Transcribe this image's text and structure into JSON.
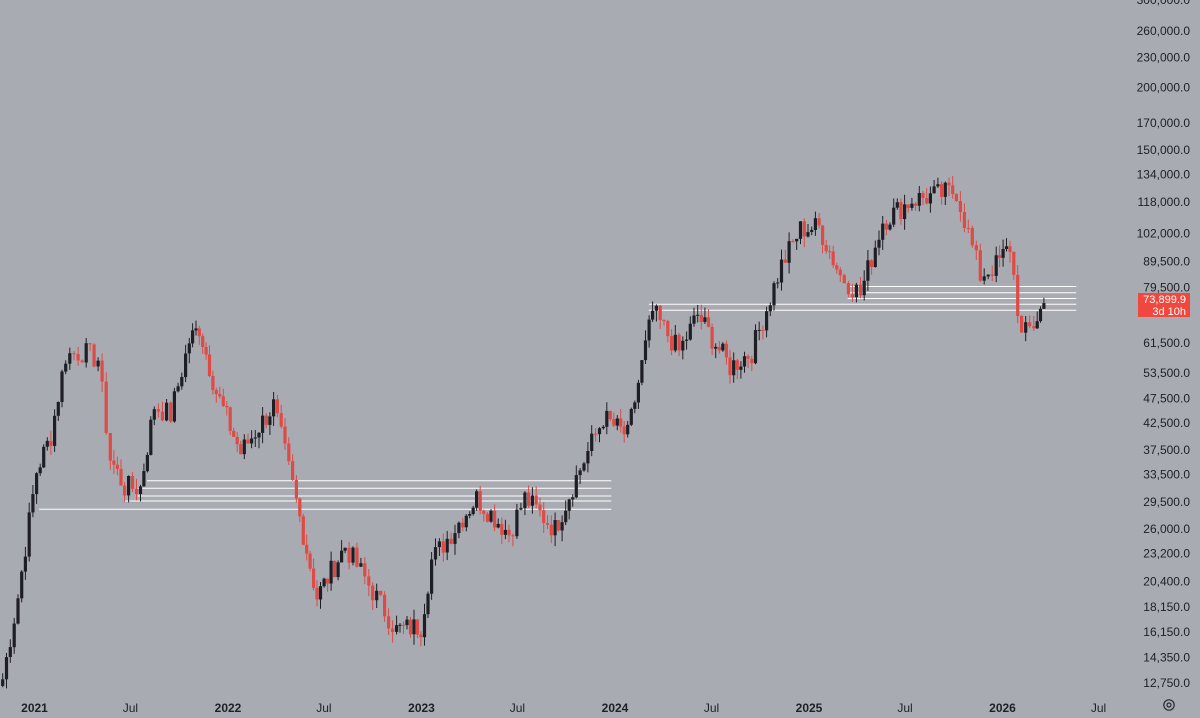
{
  "chart_data": {
    "type": "candlestick",
    "y_scale": "log",
    "ylim": [
      11800,
      300000
    ],
    "xlim": [
      "2020-10-28",
      "2026-08-20"
    ],
    "y_ticks": [
      {
        "value": 300000,
        "label": "300,000.0"
      },
      {
        "value": 260000,
        "label": "260,000.0"
      },
      {
        "value": 230000,
        "label": "230,000.0"
      },
      {
        "value": 200000,
        "label": "200,000.0"
      },
      {
        "value": 170000,
        "label": "170,000.0"
      },
      {
        "value": 150000,
        "label": "150,000.0"
      },
      {
        "value": 134000,
        "label": "134,000.0"
      },
      {
        "value": 118000,
        "label": "118,000.0"
      },
      {
        "value": 102000,
        "label": "102,000.0"
      },
      {
        "value": 89500,
        "label": "89,500.0"
      },
      {
        "value": 79500,
        "label": "79,500.0"
      },
      {
        "value": 61500,
        "label": "61,500.0"
      },
      {
        "value": 53500,
        "label": "53,500.0"
      },
      {
        "value": 47500,
        "label": "47,500.0"
      },
      {
        "value": 42500,
        "label": "42,500.0"
      },
      {
        "value": 37500,
        "label": "37,500.0"
      },
      {
        "value": 33500,
        "label": "33,500.0"
      },
      {
        "value": 29500,
        "label": "29,500.0"
      },
      {
        "value": 26000,
        "label": "26,000.0"
      },
      {
        "value": 23200,
        "label": "23,200.0"
      },
      {
        "value": 20400,
        "label": "20,400.0"
      },
      {
        "value": 18150,
        "label": "18,150.0"
      },
      {
        "value": 16150,
        "label": "16,150.0"
      },
      {
        "value": 14350,
        "label": "14,350.0"
      },
      {
        "value": 12750,
        "label": "12,750.0"
      }
    ],
    "x_ticks": [
      {
        "date": "2021-01-01",
        "label": "2021",
        "bold": true
      },
      {
        "date": "2021-07-01",
        "label": "Jul",
        "bold": false
      },
      {
        "date": "2022-01-01",
        "label": "2022",
        "bold": true
      },
      {
        "date": "2022-07-01",
        "label": "Jul",
        "bold": false
      },
      {
        "date": "2023-01-01",
        "label": "2023",
        "bold": true
      },
      {
        "date": "2023-07-01",
        "label": "Jul",
        "bold": false
      },
      {
        "date": "2024-01-01",
        "label": "2024",
        "bold": true
      },
      {
        "date": "2024-07-01",
        "label": "Jul",
        "bold": false
      },
      {
        "date": "2025-01-01",
        "label": "2025",
        "bold": true
      },
      {
        "date": "2025-07-01",
        "label": "Jul",
        "bold": false
      },
      {
        "date": "2026-01-01",
        "label": "2026",
        "bold": true
      },
      {
        "date": "2026-07-01",
        "label": "Jul",
        "bold": false
      }
    ],
    "series": [
      {
        "candle_interval": "weekly",
        "points": [
          {
            "date": "2020-11-02",
            "close": 13000
          },
          {
            "date": "2020-12-01",
            "close": 19000
          },
          {
            "date": "2021-01-05",
            "close": 34000
          },
          {
            "date": "2021-02-01",
            "close": 40000
          },
          {
            "date": "2021-03-01",
            "close": 58000
          },
          {
            "date": "2021-04-01",
            "close": 59000
          },
          {
            "date": "2021-05-01",
            "close": 57000
          },
          {
            "date": "2021-05-24",
            "close": 36000
          },
          {
            "date": "2021-06-20",
            "close": 31500
          },
          {
            "date": "2021-07-20",
            "close": 31500
          },
          {
            "date": "2021-08-15",
            "close": 46000
          },
          {
            "date": "2021-09-15",
            "close": 44000
          },
          {
            "date": "2021-10-20",
            "close": 62000
          },
          {
            "date": "2021-11-08",
            "close": 66000
          },
          {
            "date": "2021-12-10",
            "close": 49000
          },
          {
            "date": "2022-01-25",
            "close": 37000
          },
          {
            "date": "2022-03-28",
            "close": 46000
          },
          {
            "date": "2022-05-10",
            "close": 29500
          },
          {
            "date": "2022-06-18",
            "close": 19000
          },
          {
            "date": "2022-08-10",
            "close": 24000
          },
          {
            "date": "2022-10-01",
            "close": 19500
          },
          {
            "date": "2022-11-15",
            "close": 16300
          },
          {
            "date": "2022-12-31",
            "close": 16600
          },
          {
            "date": "2023-01-20",
            "close": 22500
          },
          {
            "date": "2023-03-20",
            "close": 27500
          },
          {
            "date": "2023-04-15",
            "close": 30000
          },
          {
            "date": "2023-06-15",
            "close": 25500
          },
          {
            "date": "2023-07-15",
            "close": 30000
          },
          {
            "date": "2023-09-10",
            "close": 26000
          },
          {
            "date": "2023-10-20",
            "close": 33000
          },
          {
            "date": "2023-12-10",
            "close": 43500
          },
          {
            "date": "2024-01-25",
            "close": 40000
          },
          {
            "date": "2024-03-12",
            "close": 71000
          },
          {
            "date": "2024-05-01",
            "close": 59000
          },
          {
            "date": "2024-06-05",
            "close": 70000
          },
          {
            "date": "2024-08-05",
            "close": 55000
          },
          {
            "date": "2024-09-15",
            "close": 59000
          },
          {
            "date": "2024-11-10",
            "close": 88000
          },
          {
            "date": "2024-12-16",
            "close": 104000
          },
          {
            "date": "2025-01-20",
            "close": 105000
          },
          {
            "date": "2025-03-01",
            "close": 84000
          },
          {
            "date": "2025-04-08",
            "close": 77000
          },
          {
            "date": "2025-05-20",
            "close": 108000
          },
          {
            "date": "2025-07-14",
            "close": 119000
          },
          {
            "date": "2025-10-06",
            "close": 124000
          },
          {
            "date": "2025-11-20",
            "close": 84000
          },
          {
            "date": "2025-12-20",
            "close": 88000
          },
          {
            "date": "2026-01-15",
            "close": 96000
          },
          {
            "date": "2026-02-06",
            "close": 63000
          },
          {
            "date": "2026-03-01",
            "close": 67000
          },
          {
            "date": "2026-03-20",
            "close": 73899.9
          }
        ]
      }
    ],
    "horizontal_levels": [
      {
        "from": "2021-01-10",
        "to": "2023-12-25",
        "price": 28500
      },
      {
        "from": "2021-06-20",
        "to": "2023-12-25",
        "price": 29600
      },
      {
        "from": "2021-07-15",
        "to": "2023-12-25",
        "price": 30300
      },
      {
        "from": "2021-07-15",
        "to": "2023-12-25",
        "price": 31400
      },
      {
        "from": "2021-08-01",
        "to": "2023-12-25",
        "price": 32500
      },
      {
        "from": "2024-03-05",
        "to": "2026-05-20",
        "price": 71500
      },
      {
        "from": "2024-03-05",
        "to": "2026-05-20",
        "price": 73500
      },
      {
        "from": "2025-03-15",
        "to": "2026-05-20",
        "price": 75500
      },
      {
        "from": "2025-03-15",
        "to": "2026-05-20",
        "price": 77500
      },
      {
        "from": "2025-03-15",
        "to": "2026-05-20",
        "price": 79800
      }
    ],
    "last_price": {
      "price_label": "73,899.9",
      "countdown_label": "3d 10h",
      "value": 73899.9
    },
    "colors": {
      "background": "#a9abb2",
      "up_candle": "#1e1f24",
      "down_candle": "#e04a44",
      "level_line": "#ffffff",
      "price_badge": "#f0473e",
      "axis_text": "#1f2024"
    }
  },
  "icons": {
    "settings": "gear-icon"
  }
}
